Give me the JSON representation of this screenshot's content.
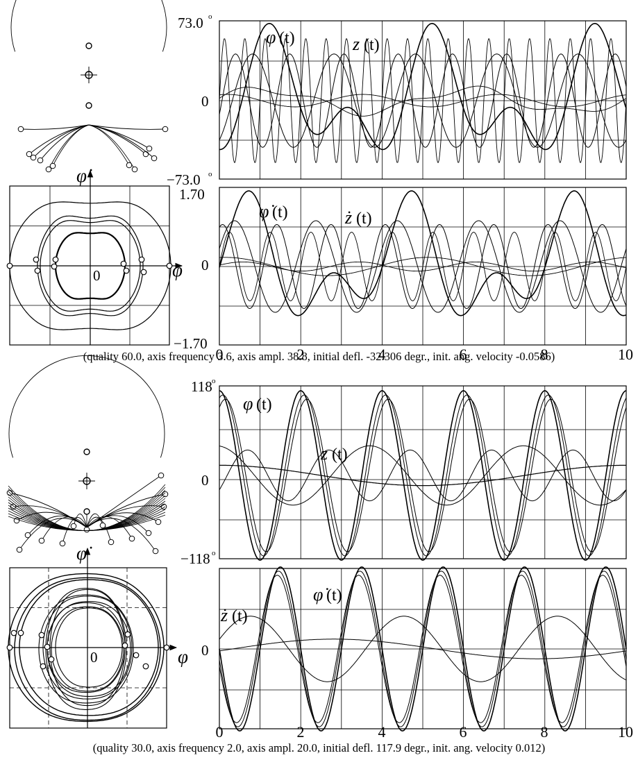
{
  "panels": [
    {
      "caption": "(quality 60.0,  axis frequency 3.6, axis ampl. 38.8,  initial defl. -32.306 degr.,  init. ang. velocity -0.0586)",
      "phase_portrait": {
        "y_axis_label": "φ̇",
        "x_axis_label": "φ",
        "origin_label": "0"
      },
      "top_plot": {
        "y_max_label": "73.0",
        "y_min_label": "−73.0",
        "y_zero_label": "0",
        "degree_mark": "o",
        "curve_labels": [
          {
            "name": "φ",
            "arg": "(t)"
          },
          {
            "name": "z",
            "arg": "(t)"
          }
        ]
      },
      "bottom_plot": {
        "y_max_label": "1.70",
        "y_min_label": "−1.70",
        "y_zero_label": "0",
        "curve_labels": [
          {
            "name": "φ̇",
            "arg": "(t)"
          },
          {
            "name": "ż",
            "arg": "(t)"
          }
        ]
      },
      "x_ticks": [
        "0",
        "2",
        "4",
        "6",
        "8",
        "10"
      ]
    },
    {
      "caption": "(quality 30.0,  axis frequency 2.0, axis ampl. 20.0,  initial defl. 117.9 degr.,  init. ang. velocity 0.012)",
      "phase_portrait": {
        "y_axis_label": "φ̇",
        "x_axis_label": "φ",
        "origin_label": "0"
      },
      "top_plot": {
        "y_max_label": "118",
        "y_min_label": "−118",
        "y_zero_label": "0",
        "degree_mark": "o",
        "curve_labels": [
          {
            "name": "φ",
            "arg": "(t)"
          },
          {
            "name": "z",
            "arg": "(t)"
          }
        ]
      },
      "bottom_plot": {
        "y_zero_label": "0",
        "curve_labels": [
          {
            "name": "φ̇",
            "arg": "(t)"
          },
          {
            "name": "ż",
            "arg": "(t)"
          }
        ]
      },
      "x_ticks": [
        "0",
        "2",
        "4",
        "6",
        "8",
        "10"
      ]
    }
  ]
}
